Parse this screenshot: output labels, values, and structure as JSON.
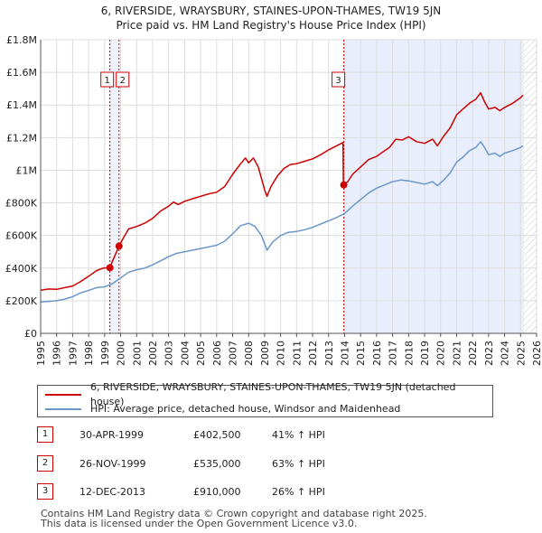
{
  "chart_data": {
    "type": "line",
    "title_line1": "6, RIVERSIDE, WRAYSBURY, STAINES-UPON-THAMES, TW19 5JN",
    "title_line2": "Price paid vs. HM Land Registry's House Price Index (HPI)",
    "xlim": [
      1995,
      2026
    ],
    "ylim": [
      0,
      1800000
    ],
    "x_ticks": [
      1995,
      1996,
      1997,
      1998,
      1999,
      2000,
      2001,
      2002,
      2003,
      2004,
      2005,
      2006,
      2007,
      2008,
      2009,
      2010,
      2011,
      2012,
      2013,
      2014,
      2015,
      2016,
      2017,
      2018,
      2019,
      2020,
      2021,
      2022,
      2023,
      2024,
      2025,
      2026
    ],
    "y_ticks": [
      {
        "value": 0,
        "label": "£0"
      },
      {
        "value": 200000,
        "label": "£200K"
      },
      {
        "value": 400000,
        "label": "£400K"
      },
      {
        "value": 600000,
        "label": "£600K"
      },
      {
        "value": 800000,
        "label": "£800K"
      },
      {
        "value": 1000000,
        "label": "£1M"
      },
      {
        "value": 1200000,
        "label": "£1.2M"
      },
      {
        "value": 1400000,
        "label": "£1.4M"
      },
      {
        "value": 1600000,
        "label": "£1.6M"
      },
      {
        "value": 1800000,
        "label": "£1.8M"
      }
    ],
    "grid": true,
    "shaded_region": [
      2013.95,
      2025.2
    ],
    "hatched_future_from": 2025.2,
    "series": [
      {
        "name": "6, RIVERSIDE, WRAYSBURY, STAINES-UPON-THAMES, TW19 5JN (detached house)",
        "color": "#cc0000",
        "points": [
          [
            1995.0,
            265000
          ],
          [
            1995.5,
            272000
          ],
          [
            1996.0,
            270000
          ],
          [
            1996.5,
            280000
          ],
          [
            1997.0,
            290000
          ],
          [
            1997.5,
            318000
          ],
          [
            1998.0,
            350000
          ],
          [
            1998.5,
            385000
          ],
          [
            1998.9,
            400000
          ],
          [
            1999.33,
            402500
          ],
          [
            1999.5,
            445000
          ],
          [
            1999.9,
            535000
          ],
          [
            2000.2,
            590000
          ],
          [
            2000.5,
            640000
          ],
          [
            2001.0,
            655000
          ],
          [
            2001.5,
            675000
          ],
          [
            2002.0,
            705000
          ],
          [
            2002.5,
            750000
          ],
          [
            2003.0,
            780000
          ],
          [
            2003.3,
            805000
          ],
          [
            2003.6,
            790000
          ],
          [
            2004.0,
            810000
          ],
          [
            2004.5,
            825000
          ],
          [
            2005.0,
            840000
          ],
          [
            2005.5,
            855000
          ],
          [
            2006.0,
            865000
          ],
          [
            2006.5,
            900000
          ],
          [
            2007.0,
            975000
          ],
          [
            2007.5,
            1040000
          ],
          [
            2007.8,
            1075000
          ],
          [
            2008.0,
            1045000
          ],
          [
            2008.3,
            1075000
          ],
          [
            2008.6,
            1020000
          ],
          [
            2009.0,
            880000
          ],
          [
            2009.15,
            840000
          ],
          [
            2009.4,
            900000
          ],
          [
            2009.8,
            965000
          ],
          [
            2010.2,
            1010000
          ],
          [
            2010.6,
            1035000
          ],
          [
            2011.0,
            1040000
          ],
          [
            2011.5,
            1055000
          ],
          [
            2012.0,
            1070000
          ],
          [
            2012.5,
            1095000
          ],
          [
            2013.0,
            1125000
          ],
          [
            2013.5,
            1150000
          ],
          [
            2013.9,
            1170000
          ],
          [
            2013.92,
            920000
          ],
          [
            2013.95,
            910000
          ],
          [
            2014.2,
            930000
          ],
          [
            2014.5,
            975000
          ],
          [
            2015.0,
            1020000
          ],
          [
            2015.5,
            1065000
          ],
          [
            2016.0,
            1085000
          ],
          [
            2016.5,
            1120000
          ],
          [
            2016.8,
            1140000
          ],
          [
            2017.2,
            1190000
          ],
          [
            2017.6,
            1185000
          ],
          [
            2018.0,
            1205000
          ],
          [
            2018.5,
            1175000
          ],
          [
            2019.0,
            1165000
          ],
          [
            2019.5,
            1190000
          ],
          [
            2019.8,
            1150000
          ],
          [
            2020.2,
            1210000
          ],
          [
            2020.6,
            1260000
          ],
          [
            2021.0,
            1340000
          ],
          [
            2021.4,
            1375000
          ],
          [
            2021.8,
            1410000
          ],
          [
            2022.2,
            1435000
          ],
          [
            2022.5,
            1475000
          ],
          [
            2022.75,
            1420000
          ],
          [
            2023.0,
            1375000
          ],
          [
            2023.4,
            1385000
          ],
          [
            2023.7,
            1365000
          ],
          [
            2024.0,
            1385000
          ],
          [
            2024.5,
            1410000
          ],
          [
            2025.0,
            1445000
          ],
          [
            2025.15,
            1460000
          ]
        ]
      },
      {
        "name": "HPI: Average price, detached house, Windsor and Maidenhead",
        "color": "#6b97c9",
        "points": [
          [
            1995.0,
            193000
          ],
          [
            1995.5,
            196000
          ],
          [
            1996.0,
            200000
          ],
          [
            1996.5,
            210000
          ],
          [
            1997.0,
            225000
          ],
          [
            1997.5,
            248000
          ],
          [
            1998.0,
            263000
          ],
          [
            1998.5,
            280000
          ],
          [
            1999.0,
            285000
          ],
          [
            1999.5,
            305000
          ],
          [
            2000.0,
            340000
          ],
          [
            2000.5,
            375000
          ],
          [
            2001.0,
            390000
          ],
          [
            2001.5,
            400000
          ],
          [
            2002.0,
            420000
          ],
          [
            2002.5,
            445000
          ],
          [
            2003.0,
            470000
          ],
          [
            2003.5,
            490000
          ],
          [
            2004.0,
            500000
          ],
          [
            2004.5,
            510000
          ],
          [
            2005.0,
            520000
          ],
          [
            2005.5,
            530000
          ],
          [
            2006.0,
            540000
          ],
          [
            2006.5,
            565000
          ],
          [
            2007.0,
            610000
          ],
          [
            2007.5,
            660000
          ],
          [
            2008.0,
            675000
          ],
          [
            2008.4,
            655000
          ],
          [
            2008.8,
            600000
          ],
          [
            2009.15,
            510000
          ],
          [
            2009.5,
            560000
          ],
          [
            2010.0,
            600000
          ],
          [
            2010.5,
            620000
          ],
          [
            2011.0,
            625000
          ],
          [
            2011.5,
            635000
          ],
          [
            2012.0,
            650000
          ],
          [
            2012.5,
            670000
          ],
          [
            2013.0,
            690000
          ],
          [
            2013.5,
            710000
          ],
          [
            2014.0,
            735000
          ],
          [
            2014.5,
            780000
          ],
          [
            2015.0,
            820000
          ],
          [
            2015.5,
            860000
          ],
          [
            2016.0,
            890000
          ],
          [
            2016.5,
            910000
          ],
          [
            2017.0,
            930000
          ],
          [
            2017.5,
            940000
          ],
          [
            2018.0,
            935000
          ],
          [
            2018.5,
            925000
          ],
          [
            2019.0,
            915000
          ],
          [
            2019.5,
            930000
          ],
          [
            2019.8,
            905000
          ],
          [
            2020.2,
            940000
          ],
          [
            2020.6,
            985000
          ],
          [
            2021.0,
            1050000
          ],
          [
            2021.4,
            1080000
          ],
          [
            2021.8,
            1120000
          ],
          [
            2022.2,
            1140000
          ],
          [
            2022.5,
            1175000
          ],
          [
            2022.75,
            1140000
          ],
          [
            2023.0,
            1095000
          ],
          [
            2023.4,
            1105000
          ],
          [
            2023.7,
            1085000
          ],
          [
            2024.0,
            1105000
          ],
          [
            2024.5,
            1120000
          ],
          [
            2025.0,
            1140000
          ],
          [
            2025.15,
            1150000
          ]
        ]
      }
    ],
    "sales": [
      {
        "id": "1",
        "x": 1999.33,
        "price": 402500
      },
      {
        "id": "2",
        "x": 1999.9,
        "price": 535000
      },
      {
        "id": "3",
        "x": 2013.95,
        "price": 910000
      }
    ]
  },
  "legend": {
    "property_label": "6, RIVERSIDE, WRAYSBURY, STAINES-UPON-THAMES, TW19 5JN (detached house)",
    "hpi_label": "HPI: Average price, detached house, Windsor and Maidenhead",
    "property_color": "#cc0000",
    "hpi_color": "#6b97c9"
  },
  "sales_table": [
    {
      "id": "1",
      "date": "30-APR-1999",
      "price": "£402,500",
      "hpi": "41% ↑ HPI"
    },
    {
      "id": "2",
      "date": "26-NOV-1999",
      "price": "£535,000",
      "hpi": "63% ↑ HPI"
    },
    {
      "id": "3",
      "date": "12-DEC-2013",
      "price": "£910,000",
      "hpi": "26% ↑ HPI"
    }
  ],
  "footer": {
    "line1": "Contains HM Land Registry data © Crown copyright and database right 2025.",
    "line2": "This data is licensed under the Open Government Licence v3.0."
  }
}
